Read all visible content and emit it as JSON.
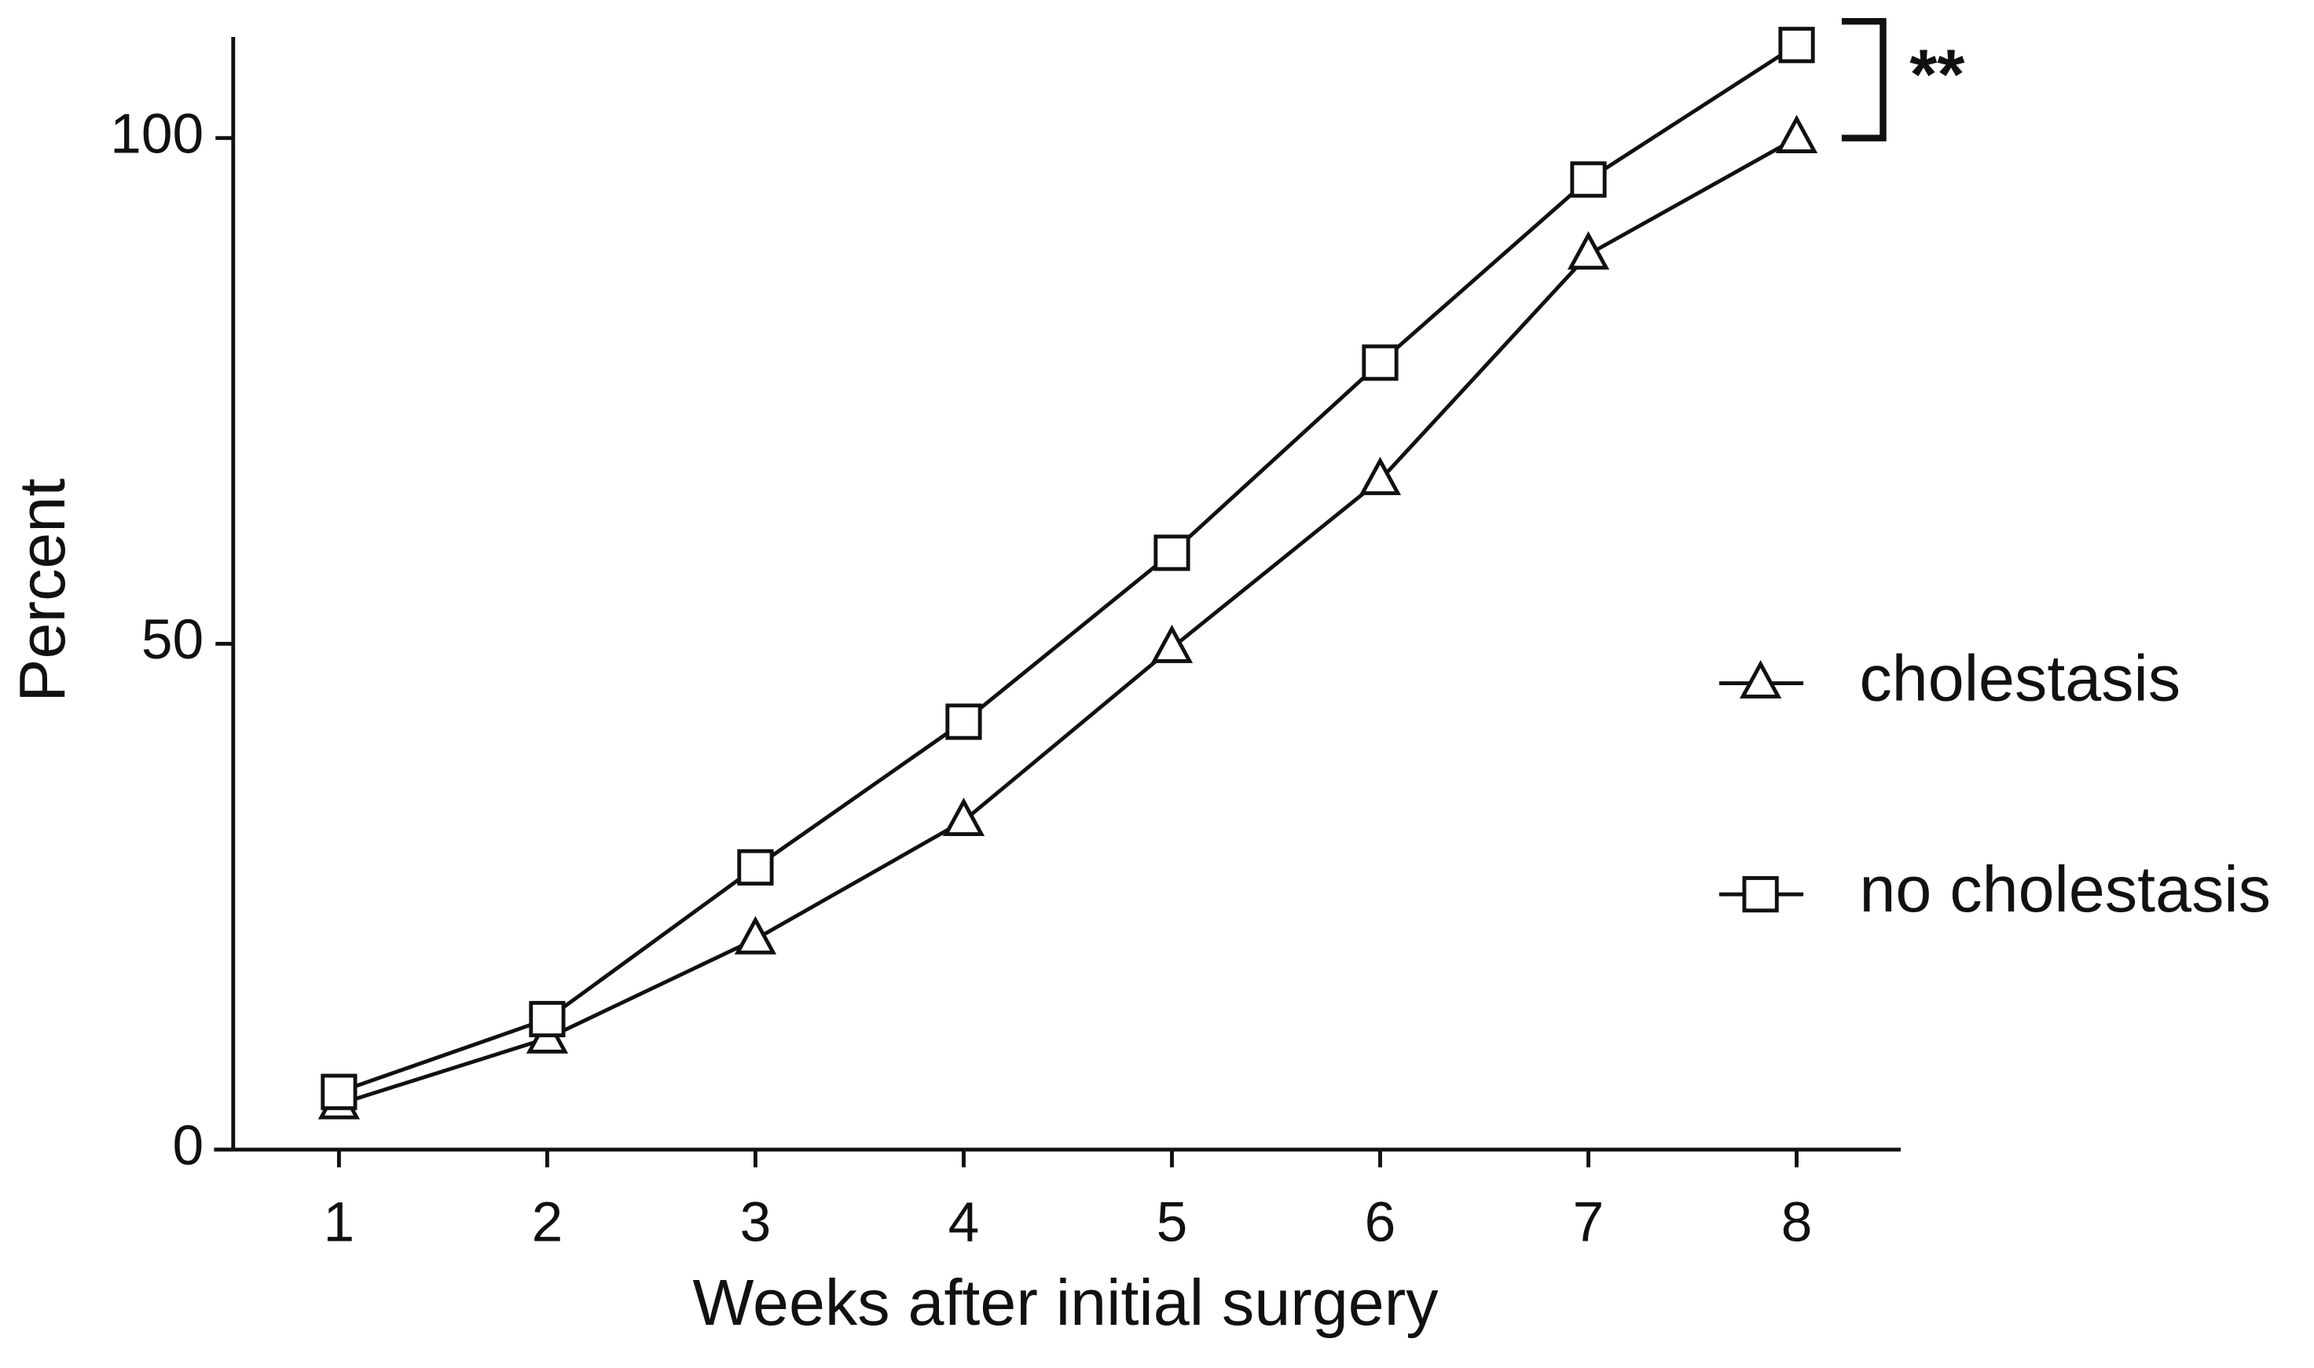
{
  "chart_data": {
    "type": "line",
    "x_label": "Weeks after initial surgery",
    "y_label": "Percent",
    "x": [
      1,
      2,
      3,
      4,
      5,
      6,
      7,
      8
    ],
    "series": [
      {
        "name": "cholestasis",
        "color": "#111111",
        "marker": "triangle",
        "values": [
          4.5,
          11,
          20.8,
          32.5,
          49.6,
          66.2,
          88.5,
          100
        ]
      },
      {
        "name": "no cholestasis",
        "color": "#111111",
        "marker": "square",
        "values": [
          5.7,
          12.9,
          27.9,
          42.3,
          59,
          77.8,
          95.9,
          109.2
        ]
      }
    ],
    "xlim": [
      0.4,
      8.5
    ],
    "xticks": [
      1,
      2,
      3,
      4,
      5,
      6,
      7,
      8
    ],
    "ylim": [
      0,
      110
    ],
    "yticks": [
      0,
      50,
      100
    ],
    "grid": false,
    "legend_position": "right",
    "annotation": "**"
  }
}
